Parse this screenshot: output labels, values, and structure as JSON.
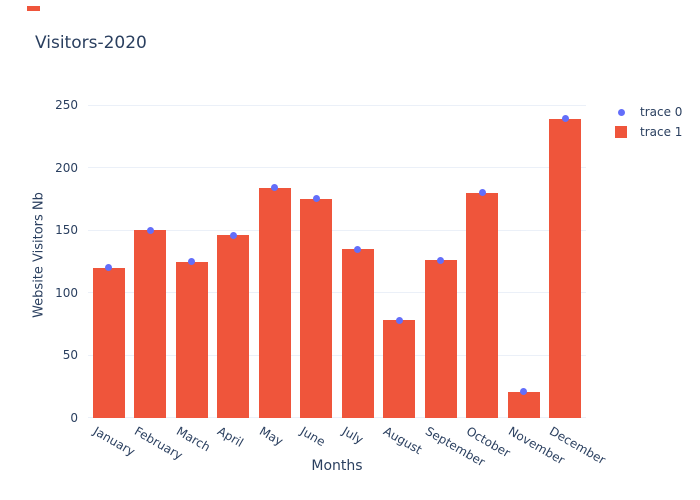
{
  "chart_data": {
    "type": "bar",
    "title": "Visitors-2020",
    "xlabel": "Months",
    "ylabel": "Website Visitors Nb",
    "categories": [
      "January",
      "February",
      "March",
      "April",
      "May",
      "June",
      "July",
      "August",
      "September",
      "October",
      "November",
      "December"
    ],
    "series": [
      {
        "name": "trace 0",
        "type": "scatter",
        "marker": "dot",
        "color": "#636EFA",
        "values": [
          120,
          150,
          125,
          146,
          184,
          175,
          135,
          78,
          126,
          180,
          21,
          239
        ]
      },
      {
        "name": "trace 1",
        "type": "bar",
        "marker": "square",
        "color": "#EF553B",
        "values": [
          120,
          150,
          125,
          146,
          184,
          175,
          135,
          78,
          126,
          180,
          21,
          239
        ]
      }
    ],
    "yticks": [
      0,
      50,
      100,
      150,
      200,
      250
    ],
    "ylim": [
      0,
      262
    ],
    "grid": true,
    "legend_position": "top-right"
  },
  "colors": {
    "background": "#ffffff",
    "text": "#2a3f5f",
    "grid": "#ebf0f8",
    "bar": "#ef553b",
    "scatter": "#636efa",
    "corner_dash": "#ef553b"
  }
}
